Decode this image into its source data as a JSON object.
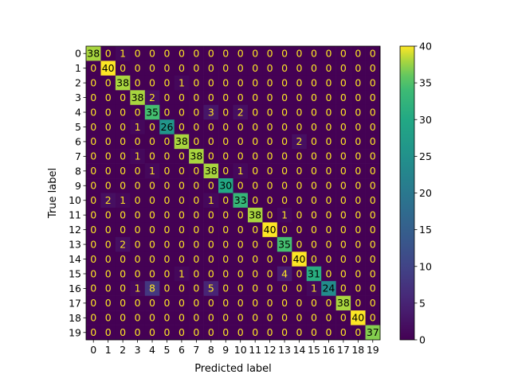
{
  "chart_data": {
    "type": "heatmap",
    "title": "",
    "xlabel": "Predicted label",
    "ylabel": "True label",
    "x_categories": [
      "0",
      "1",
      "2",
      "3",
      "4",
      "5",
      "6",
      "7",
      "8",
      "9",
      "10",
      "11",
      "12",
      "13",
      "14",
      "15",
      "16",
      "17",
      "18",
      "19"
    ],
    "y_categories": [
      "0",
      "1",
      "2",
      "3",
      "4",
      "5",
      "6",
      "7",
      "8",
      "9",
      "10",
      "11",
      "12",
      "13",
      "14",
      "15",
      "16",
      "17",
      "18",
      "19"
    ],
    "matrix": [
      [
        38,
        0,
        1,
        0,
        0,
        0,
        0,
        0,
        0,
        0,
        0,
        0,
        0,
        0,
        0,
        0,
        0,
        0,
        0,
        0
      ],
      [
        0,
        40,
        0,
        0,
        0,
        0,
        0,
        0,
        0,
        0,
        0,
        0,
        0,
        0,
        0,
        0,
        0,
        0,
        0,
        0
      ],
      [
        0,
        0,
        38,
        0,
        0,
        0,
        1,
        0,
        0,
        0,
        0,
        0,
        0,
        0,
        0,
        0,
        0,
        0,
        0,
        0
      ],
      [
        0,
        0,
        0,
        38,
        2,
        0,
        0,
        0,
        0,
        0,
        0,
        0,
        0,
        0,
        0,
        0,
        0,
        0,
        0,
        0
      ],
      [
        0,
        0,
        0,
        0,
        35,
        0,
        0,
        0,
        3,
        0,
        2,
        0,
        0,
        0,
        0,
        0,
        0,
        0,
        0,
        0
      ],
      [
        0,
        0,
        0,
        1,
        0,
        26,
        0,
        0,
        0,
        0,
        0,
        0,
        0,
        0,
        0,
        0,
        0,
        0,
        0,
        0
      ],
      [
        0,
        0,
        0,
        0,
        0,
        0,
        38,
        0,
        0,
        0,
        0,
        0,
        0,
        0,
        2,
        0,
        0,
        0,
        0,
        0
      ],
      [
        0,
        0,
        0,
        1,
        0,
        0,
        0,
        38,
        0,
        0,
        0,
        0,
        0,
        0,
        0,
        0,
        0,
        0,
        0,
        0
      ],
      [
        0,
        0,
        0,
        0,
        1,
        0,
        0,
        0,
        38,
        0,
        1,
        0,
        0,
        0,
        0,
        0,
        0,
        0,
        0,
        0
      ],
      [
        0,
        0,
        0,
        0,
        0,
        0,
        0,
        0,
        0,
        30,
        0,
        0,
        0,
        0,
        0,
        0,
        0,
        0,
        0,
        0
      ],
      [
        0,
        2,
        1,
        0,
        0,
        0,
        0,
        0,
        1,
        0,
        33,
        0,
        0,
        0,
        0,
        0,
        0,
        0,
        0,
        0
      ],
      [
        0,
        0,
        0,
        0,
        0,
        0,
        0,
        0,
        0,
        0,
        0,
        38,
        0,
        1,
        0,
        0,
        0,
        0,
        0,
        0
      ],
      [
        0,
        0,
        0,
        0,
        0,
        0,
        0,
        0,
        0,
        0,
        0,
        0,
        40,
        0,
        0,
        0,
        0,
        0,
        0,
        0
      ],
      [
        0,
        0,
        2,
        0,
        0,
        0,
        0,
        0,
        0,
        0,
        0,
        0,
        0,
        35,
        0,
        0,
        0,
        0,
        0,
        0
      ],
      [
        0,
        0,
        0,
        0,
        0,
        0,
        0,
        0,
        0,
        0,
        0,
        0,
        0,
        0,
        40,
        0,
        0,
        0,
        0,
        0
      ],
      [
        0,
        0,
        0,
        0,
        0,
        0,
        1,
        0,
        0,
        0,
        0,
        0,
        0,
        4,
        0,
        31,
        0,
        0,
        0,
        0
      ],
      [
        0,
        0,
        0,
        1,
        8,
        0,
        0,
        0,
        5,
        0,
        0,
        0,
        0,
        0,
        0,
        1,
        24,
        0,
        0,
        0
      ],
      [
        0,
        0,
        0,
        0,
        0,
        0,
        0,
        0,
        0,
        0,
        0,
        0,
        0,
        0,
        0,
        0,
        0,
        38,
        0,
        0
      ],
      [
        0,
        0,
        0,
        0,
        0,
        0,
        0,
        0,
        0,
        0,
        0,
        0,
        0,
        0,
        0,
        0,
        0,
        0,
        40,
        0
      ],
      [
        0,
        0,
        0,
        0,
        0,
        0,
        0,
        0,
        0,
        0,
        0,
        0,
        0,
        0,
        0,
        0,
        0,
        0,
        0,
        37
      ]
    ],
    "colorscale": "viridis",
    "zlim": [
      0,
      40
    ],
    "colorbar_ticks": [
      "0",
      "5",
      "10",
      "15",
      "20",
      "25",
      "30",
      "35",
      "40"
    ],
    "grid": false
  }
}
